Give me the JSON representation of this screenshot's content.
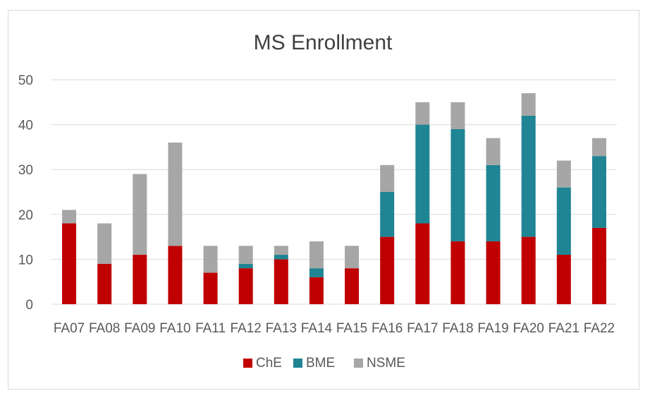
{
  "chart_data": {
    "type": "bar",
    "stacked": true,
    "title": "MS Enrollment",
    "xlabel": "",
    "ylabel": "",
    "ylim": [
      0,
      50
    ],
    "yticks": [
      0,
      10,
      20,
      30,
      40,
      50
    ],
    "grid": true,
    "legend_position": "bottom",
    "categories": [
      "FA07",
      "FA08",
      "FA09",
      "FA10",
      "FA11",
      "FA12",
      "FA13",
      "FA14",
      "FA15",
      "FA16",
      "FA17",
      "FA18",
      "FA19",
      "FA20",
      "FA21",
      "FA22"
    ],
    "series": [
      {
        "name": "ChE",
        "color": "#c00000",
        "values": [
          18,
          9,
          11,
          13,
          7,
          8,
          10,
          6,
          8,
          15,
          18,
          14,
          14,
          15,
          11,
          17
        ]
      },
      {
        "name": "BME",
        "color": "#1f8493",
        "values": [
          0,
          0,
          0,
          0,
          0,
          1,
          1,
          2,
          0,
          10,
          22,
          25,
          17,
          27,
          15,
          16
        ]
      },
      {
        "name": "NSME",
        "color": "#a6a6a6",
        "values": [
          3,
          9,
          18,
          23,
          6,
          4,
          2,
          6,
          5,
          6,
          5,
          6,
          6,
          5,
          6,
          4
        ]
      }
    ]
  }
}
